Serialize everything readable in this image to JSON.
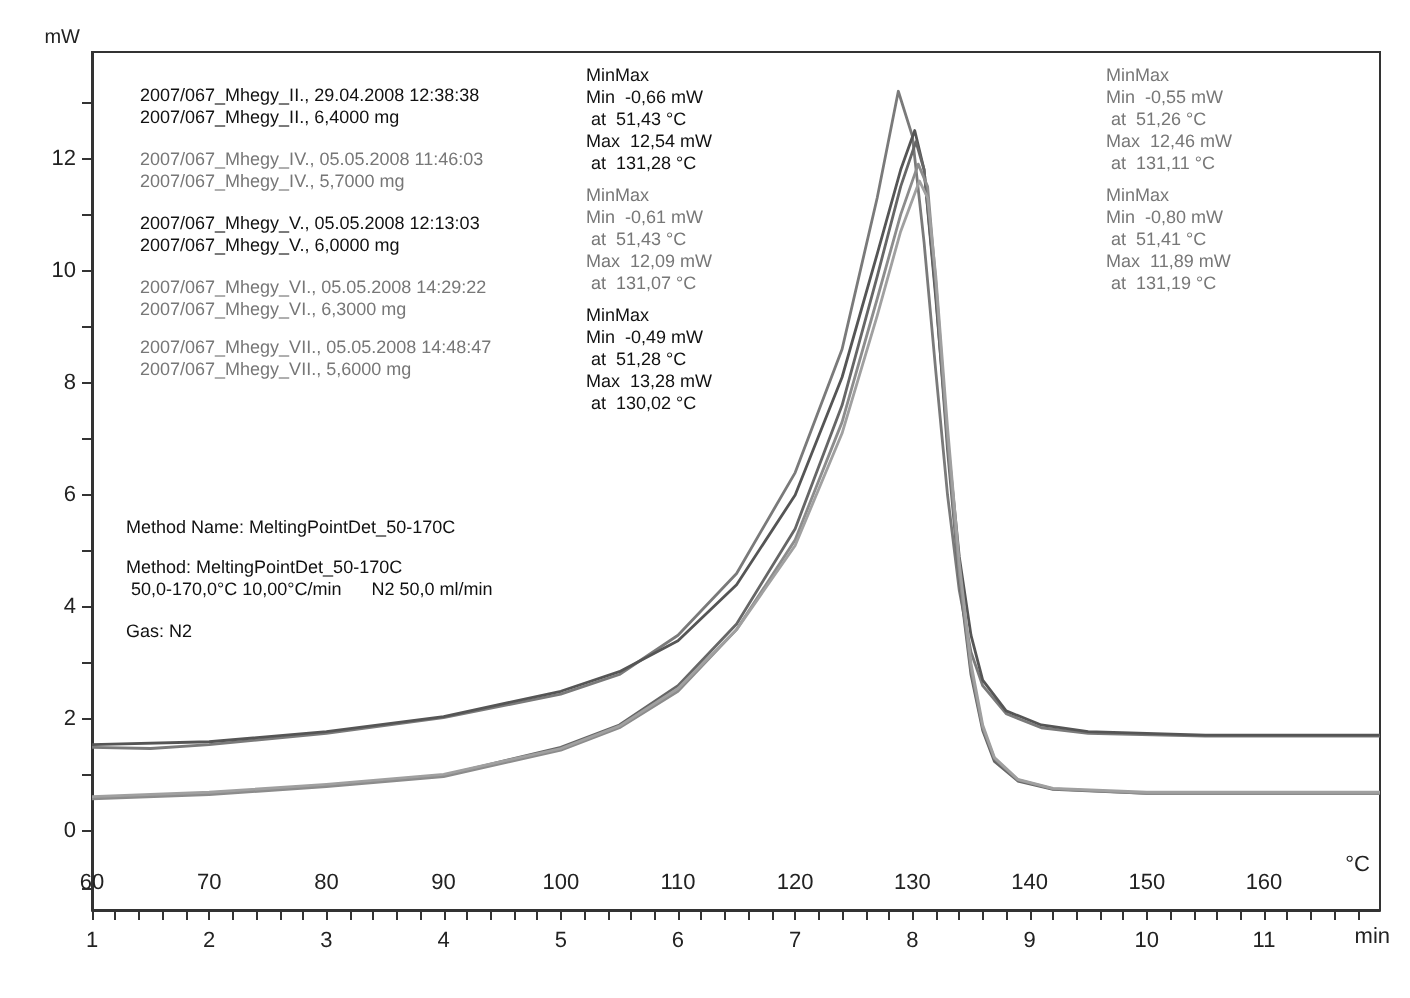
{
  "chart_data": {
    "type": "line",
    "xlabel": "°C",
    "ylabel": "mW",
    "x2label": "min",
    "xlim": [
      60,
      169.9
    ],
    "xticks": [
      60,
      {
        "value": 62,
        "label": null
      },
      {
        "value": 64,
        "label": null
      },
      {
        "value": 66,
        "label": null
      },
      {
        "value": 68,
        "label": null
      },
      70,
      {
        "value": 72,
        "label": null
      },
      {
        "value": 74,
        "label": null
      },
      {
        "value": 76,
        "label": null
      },
      {
        "value": 78,
        "label": null
      },
      80,
      {
        "value": 82,
        "label": null
      },
      {
        "value": 84,
        "label": null
      },
      {
        "value": 86,
        "label": null
      },
      {
        "value": 88,
        "label": null
      },
      90,
      {
        "value": 92,
        "label": null
      },
      {
        "value": 94,
        "label": null
      },
      {
        "value": 96,
        "label": null
      },
      {
        "value": 98,
        "label": null
      },
      100,
      {
        "value": 102,
        "label": null
      },
      {
        "value": 104,
        "label": null
      },
      {
        "value": 106,
        "label": null
      },
      {
        "value": 108,
        "label": null
      },
      110,
      {
        "value": 112,
        "label": null
      },
      {
        "value": 114,
        "label": null
      },
      {
        "value": 116,
        "label": null
      },
      {
        "value": 118,
        "label": null
      },
      120,
      {
        "value": 122,
        "label": null
      },
      {
        "value": 124,
        "label": null
      },
      {
        "value": 126,
        "label": null
      },
      {
        "value": 128,
        "label": null
      },
      130,
      {
        "value": 132,
        "label": null
      },
      {
        "value": 134,
        "label": null
      },
      {
        "value": 136,
        "label": null
      },
      {
        "value": 138,
        "label": null
      },
      140,
      {
        "value": 142,
        "label": null
      },
      {
        "value": 144,
        "label": null
      },
      {
        "value": 146,
        "label": null
      },
      {
        "value": 148,
        "label": null
      },
      150,
      {
        "value": 152,
        "label": null
      },
      {
        "value": 154,
        "label": null
      },
      {
        "value": 156,
        "label": null
      },
      {
        "value": 158,
        "label": null
      },
      160,
      {
        "value": 162,
        "label": null
      },
      {
        "value": 164,
        "label": null
      },
      {
        "value": 166,
        "label": null
      },
      {
        "value": 168,
        "label": null
      }
    ],
    "x2lim": [
      1,
      11.99
    ],
    "x2ticks": [
      1,
      2,
      3,
      4,
      5,
      6,
      7,
      8,
      9,
      10,
      11
    ],
    "ylim": [
      -1.4,
      13.9
    ],
    "yticks": [
      {
        "value": -1,
        "label": null
      },
      0,
      {
        "value": 1,
        "label": null
      },
      2,
      {
        "value": 3,
        "label": null
      },
      4,
      {
        "value": 5,
        "label": null
      },
      6,
      {
        "value": 7,
        "label": null
      },
      8,
      {
        "value": 9,
        "label": null
      },
      10,
      {
        "value": 11,
        "label": null
      },
      12,
      {
        "value": 13,
        "label": null
      }
    ],
    "grid": false,
    "marker": "none",
    "line_style": "solid",
    "series": [
      {
        "color": "#7a7a7a",
        "x": [
          60,
          65,
          70,
          80,
          90,
          100,
          105,
          110,
          115,
          120,
          124,
          127,
          128.8,
          130,
          131,
          132,
          133,
          134,
          135,
          136,
          138,
          141,
          145,
          155,
          169.9
        ],
        "values": [
          1.5,
          1.48,
          1.55,
          1.75,
          2.03,
          2.45,
          2.8,
          3.5,
          4.6,
          6.4,
          8.6,
          11.3,
          13.2,
          12.4,
          10.5,
          8.2,
          6.0,
          4.3,
          3.2,
          2.6,
          2.1,
          1.85,
          1.75,
          1.7,
          1.7
        ]
      },
      {
        "color": "#555555",
        "x": [
          60,
          70,
          80,
          90,
          100,
          105,
          110,
          115,
          120,
          124,
          127,
          129,
          130.2,
          131,
          132,
          133,
          134,
          135,
          136,
          138,
          141,
          145,
          155,
          169.9
        ],
        "values": [
          1.55,
          1.6,
          1.78,
          2.05,
          2.5,
          2.85,
          3.4,
          4.4,
          6.0,
          8.1,
          10.3,
          11.8,
          12.5,
          11.8,
          9.5,
          7.0,
          4.9,
          3.5,
          2.7,
          2.15,
          1.9,
          1.78,
          1.72,
          1.72
        ]
      },
      {
        "color": "#666666",
        "x": [
          60,
          70,
          80,
          90,
          100,
          105,
          110,
          115,
          120,
          124,
          127,
          129,
          130.3,
          131,
          132,
          133,
          134,
          135,
          136,
          137,
          139,
          142,
          150,
          169.9
        ],
        "values": [
          0.6,
          0.68,
          0.82,
          1.0,
          1.5,
          1.9,
          2.6,
          3.7,
          5.4,
          7.6,
          9.9,
          11.5,
          12.3,
          11.8,
          9.6,
          6.8,
          4.5,
          2.8,
          1.8,
          1.25,
          0.9,
          0.75,
          0.68,
          0.68
        ]
      },
      {
        "color": "#8c8c8c",
        "x": [
          60,
          70,
          80,
          90,
          100,
          105,
          110,
          115,
          120,
          124,
          127,
          129,
          130.5,
          131.3,
          132,
          133,
          134,
          135,
          136,
          137,
          139,
          142,
          150,
          169.9
        ],
        "values": [
          0.58,
          0.66,
          0.8,
          0.98,
          1.45,
          1.85,
          2.5,
          3.6,
          5.2,
          7.3,
          9.5,
          11.0,
          11.9,
          11.5,
          9.8,
          7.0,
          4.6,
          2.9,
          1.85,
          1.3,
          0.92,
          0.76,
          0.68,
          0.68
        ]
      },
      {
        "color": "#a0a0a0",
        "x": [
          60,
          70,
          80,
          90,
          100,
          105,
          110,
          115,
          120,
          124,
          127,
          129,
          130.6,
          131.3,
          132,
          133,
          134,
          135,
          136,
          137,
          139,
          142,
          150,
          169.9
        ],
        "values": [
          0.62,
          0.7,
          0.84,
          1.02,
          1.48,
          1.88,
          2.55,
          3.6,
          5.1,
          7.1,
          9.2,
          10.7,
          11.6,
          11.3,
          9.9,
          7.2,
          4.8,
          3.0,
          1.9,
          1.32,
          0.93,
          0.77,
          0.7,
          0.7
        ]
      }
    ],
    "annotations": [
      "2007/067_Mhegy_II., 29.04.2008 12:38:38\n2007/067_Mhegy_II., 6,4000 mg",
      "2007/067_Mhegy_IV., 05.05.2008 11:46:03\n2007/067_Mhegy_IV., 5,7000 mg",
      "2007/067_Mhegy_V., 05.05.2008 12:13:03\n2007/067_Mhegy_V., 6,0000 mg",
      "2007/067_Mhegy_VI., 05.05.2008 14:29:22\n2007/067_Mhegy_VI., 6,3000 mg",
      "2007/067_Mhegy_VII., 05.05.2008 14:48:47\n2007/067_Mhegy_VII., 5,6000 mg",
      "Method Name: MeltingPointDet_50-170C",
      "Method: MeltingPointDet_50-170C\n 50,0-170,0°C 10,00°C/min      N2 50,0 ml/min",
      "Gas: N2",
      "MinMax\nMin  -0,66 mW\n at  51,43 °C\nMax  12,54 mW\n at  131,28 °C",
      "MinMax\nMin  -0,61 mW\n at  51,43 °C\nMax  12,09 mW\n at  131,07 °C",
      "MinMax\nMin  -0,49 mW\n at  51,28 °C\nMax  13,28 mW\n at  130,02 °C",
      "MinMax\nMin  -0,55 mW\n at  51,26 °C\nMax  12,46 mW\n at  131,11 °C",
      "MinMax\nMin  -0,80 mW\n at  51,41 °C\nMax  11,89 mW\n at  131,19 °C"
    ]
  }
}
